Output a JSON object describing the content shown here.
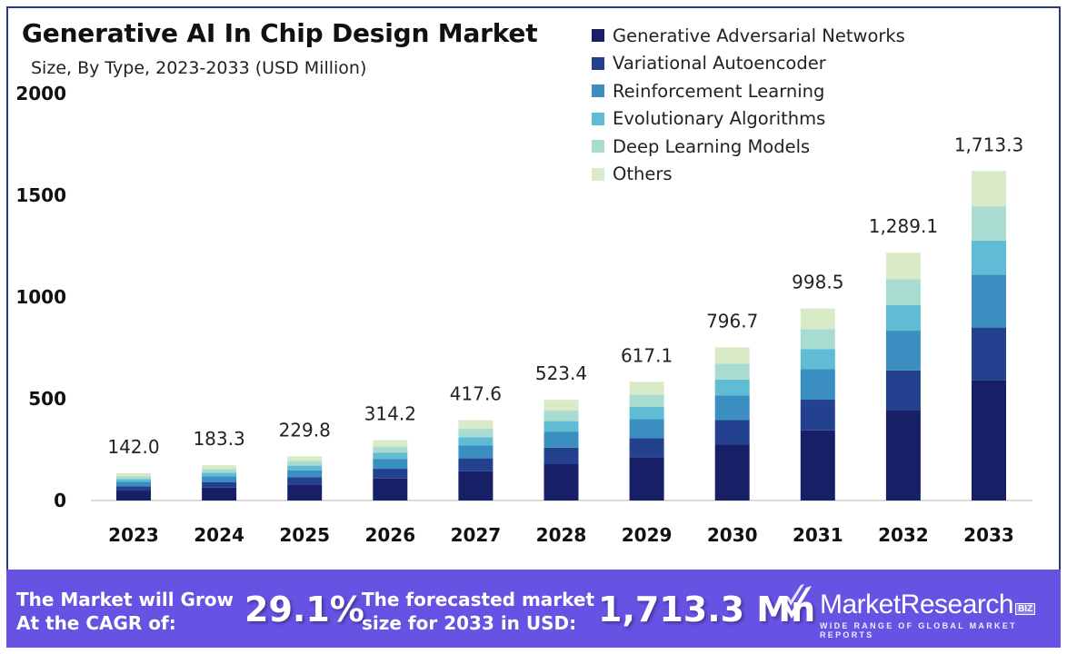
{
  "header": {
    "title": "Generative AI In Chip Design Market",
    "subtitle": "Size, By Type, 2023-2033 (USD Million)"
  },
  "colors": {
    "series": [
      "#172066",
      "#24418f",
      "#3b8fc0",
      "#5fbcd4",
      "#a9dcd0",
      "#d9eac6"
    ],
    "banner": "#6652e3",
    "frame": "#2e3a7a"
  },
  "chart_data": {
    "type": "bar",
    "stacked": true,
    "title": "Generative AI In Chip Design Market",
    "subtitle": "Size, By Type, 2023-2033 (USD Million)",
    "xlabel": "",
    "ylabel": "",
    "ylim": [
      0,
      2000
    ],
    "yticks": [
      "0",
      "500",
      "1000",
      "1500",
      "2000"
    ],
    "grid": false,
    "legend_position": "top-right",
    "categories": [
      "2023",
      "2024",
      "2025",
      "2026",
      "2027",
      "2028",
      "2029",
      "2030",
      "2031",
      "2032",
      "2033"
    ],
    "totals": [
      142.0,
      183.3,
      229.8,
      314.2,
      417.6,
      523.4,
      617.1,
      796.7,
      998.5,
      1289.1,
      1713.3
    ],
    "total_labels": [
      "142.0",
      "183.3",
      "229.8",
      "314.2",
      "417.6",
      "523.4",
      "617.1",
      "796.7",
      "998.5",
      "1,289.1",
      "1,713.3"
    ],
    "series": [
      {
        "name": "Generative Adversarial Networks",
        "values": [
          51.8,
          66.9,
          83.9,
          114.7,
          152.4,
          191.0,
          225.2,
          290.8,
          364.5,
          470.5,
          625.4
        ]
      },
      {
        "name": "Variational Autoencoder",
        "values": [
          22.7,
          29.3,
          36.8,
          50.3,
          66.8,
          83.7,
          98.7,
          127.5,
          159.8,
          206.3,
          274.1
        ]
      },
      {
        "name": "Reinforcement Learning",
        "values": [
          22.7,
          29.3,
          36.8,
          50.3,
          66.8,
          83.7,
          98.7,
          127.5,
          159.8,
          206.3,
          274.1
        ]
      },
      {
        "name": "Evolutionary Algorithms",
        "values": [
          14.8,
          19.1,
          23.9,
          32.7,
          43.4,
          54.4,
          64.2,
          82.9,
          103.8,
          134.1,
          178.2
        ]
      },
      {
        "name": "Deep Learning Models",
        "values": [
          14.8,
          19.1,
          23.9,
          32.7,
          43.4,
          54.4,
          64.2,
          82.9,
          103.8,
          134.1,
          178.2
        ]
      },
      {
        "name": "Others",
        "values": [
          15.2,
          19.6,
          24.5,
          33.5,
          44.8,
          56.2,
          66.1,
          85.1,
          106.8,
          137.8,
          183.3
        ]
      }
    ]
  },
  "banner": {
    "cagr_label_line1": "The Market will Grow",
    "cagr_label_line2": "At the CAGR of:",
    "cagr_value": "29.1%",
    "forecast_label_line1": "The forecasted market",
    "forecast_label_line2": "size for 2033 in USD:",
    "forecast_value": "1,713.3 Mn",
    "brand_name": "MarketResearch",
    "brand_suffix": "BIZ",
    "brand_tagline": "WIDE RANGE OF GLOBAL MARKET REPORTS",
    "brand_icon": "double-check-icon"
  }
}
